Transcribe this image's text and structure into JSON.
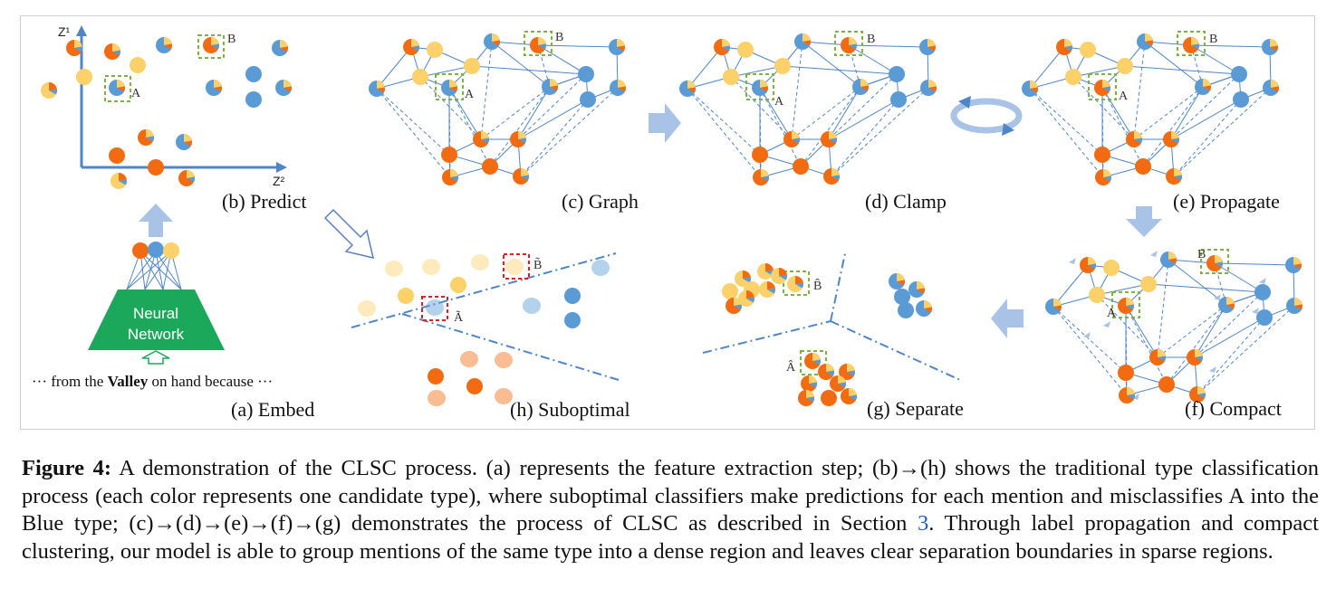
{
  "panels": {
    "embed": "(a) Embed",
    "predict": "(b) Predict",
    "graph": "(c) Graph",
    "clamp": "(d) Clamp",
    "propagate": "(e) Propagate",
    "compact": "(f) Compact",
    "separate": "(g) Separate",
    "suboptimal": "(h) Suboptimal"
  },
  "labels": {
    "node_a": "A",
    "node_b": "B",
    "node_a_tilde": "Ã",
    "node_b_tilde": "B̃",
    "node_a_hat": "Â",
    "node_b_hat": "B̂",
    "axis_z1": "Z¹",
    "axis_z2": "Z²"
  },
  "network": {
    "line1": "Neural",
    "line2": "Network"
  },
  "sentence": {
    "prefix": "··· from the ",
    "highlight": "Valley",
    "suffix": " on hand because ···"
  },
  "caption": {
    "title": "Figure 4:",
    "text1": " A demonstration of the CLSC process. (a) represents the feature extraction step; (b)→(h) shows the traditional type classification process (each color represents one candidate type), where suboptimal classifiers make predictions for each mention and misclassifies A into the Blue type; (c)→(d)→(e)→(f)→(g) demonstrates the process of CLSC as described in Section ",
    "section": "3",
    "text2": ". Through label propagation and compact clustering, our model is able to group mentions of the same type into a dense region and leaves clear separation boundaries in sparse regions."
  },
  "colors": {
    "yellow": "#fcd16a",
    "orange": "#f26b10",
    "blue": "#5b9bd5",
    "edge": "#4f86c6",
    "network": "#1ca85a",
    "arrow": "#a9c3e6",
    "dash_box": "#7cb342",
    "red_box": "#e02020"
  }
}
